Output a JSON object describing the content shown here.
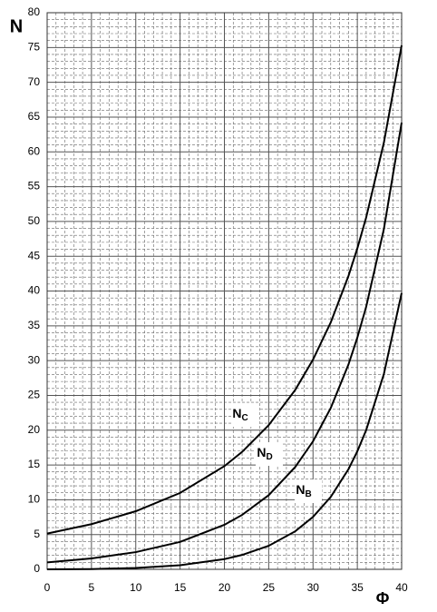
{
  "chart_data": {
    "type": "line",
    "x": [
      0,
      5,
      10,
      15,
      20,
      22,
      25,
      28,
      30,
      32,
      34,
      35,
      36,
      38,
      40
    ],
    "series": [
      {
        "name": "NC",
        "color": "#000000",
        "values": [
          5.14,
          6.49,
          8.35,
          10.98,
          14.83,
          16.88,
          20.72,
          25.8,
          30.14,
          35.49,
          42.16,
          46.12,
          50.59,
          61.35,
          75.31
        ]
      },
      {
        "name": "ND",
        "color": "#000000",
        "values": [
          1,
          1.57,
          2.47,
          3.94,
          6.4,
          7.82,
          10.66,
          14.72,
          18.4,
          23.18,
          29.44,
          33.3,
          37.75,
          48.93,
          64.2
        ]
      },
      {
        "name": "NB",
        "color": "#000000",
        "values": [
          0,
          0.04,
          0.19,
          0.59,
          1.47,
          2.07,
          3.38,
          5.47,
          7.53,
          10.4,
          14.39,
          16.96,
          20.02,
          28.09,
          39.71
        ]
      }
    ],
    "y_label": "N",
    "x_label": "Φ",
    "xlim": [
      0,
      40
    ],
    "xticks": [
      0,
      5,
      10,
      15,
      20,
      25,
      30,
      35,
      40
    ],
    "ylim": [
      0,
      80
    ],
    "yticks": [
      0,
      5,
      10,
      15,
      20,
      25,
      30,
      35,
      40,
      45,
      50,
      55,
      60,
      65,
      70,
      75,
      80
    ],
    "grid": true,
    "minor_grid_divisions": 5
  }
}
